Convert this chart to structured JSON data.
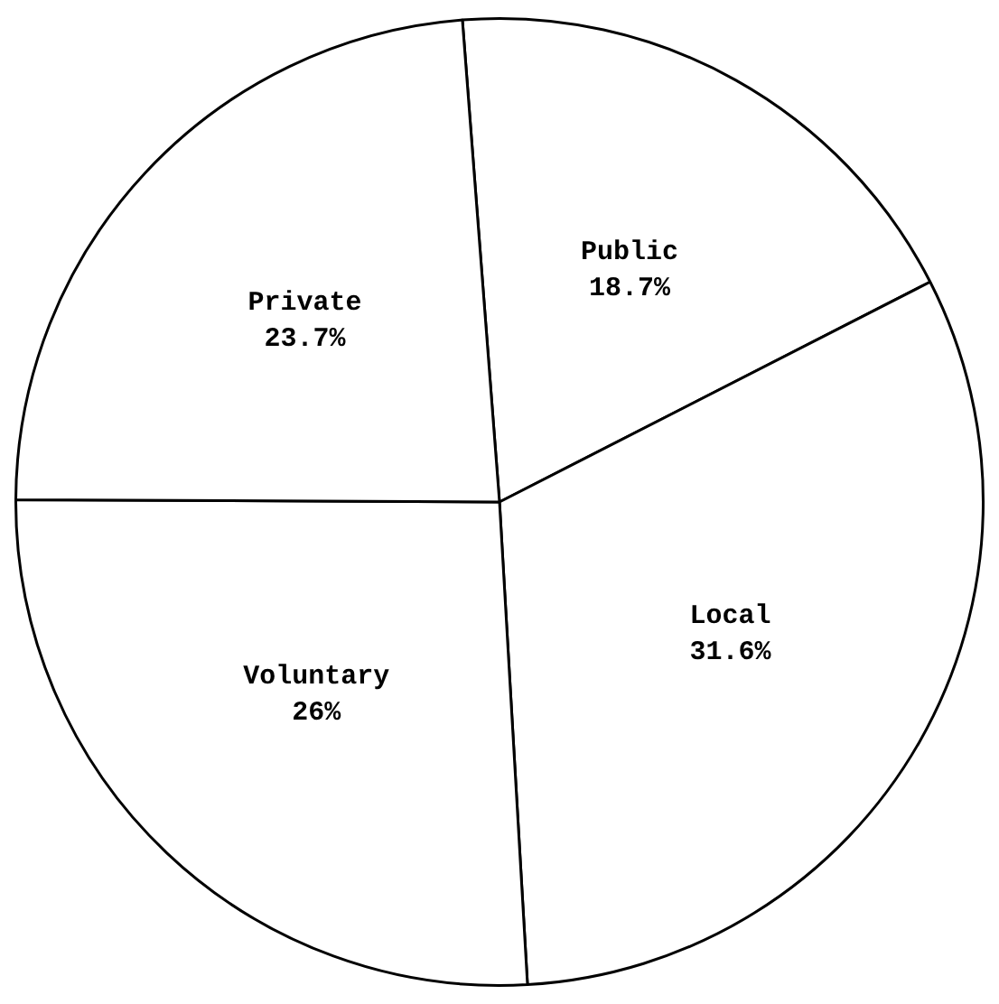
{
  "chart_data": {
    "type": "pie",
    "categories": [
      "Public",
      "Local",
      "Voluntary",
      "Private"
    ],
    "values": [
      18.7,
      31.6,
      26,
      23.7
    ],
    "colors": [
      "#ffffff",
      "#ffffff",
      "#ffffff",
      "#ffffff"
    ],
    "value_labels": [
      "18.7%",
      "31.6%",
      "26%",
      "23.7%"
    ],
    "legend": false
  }
}
